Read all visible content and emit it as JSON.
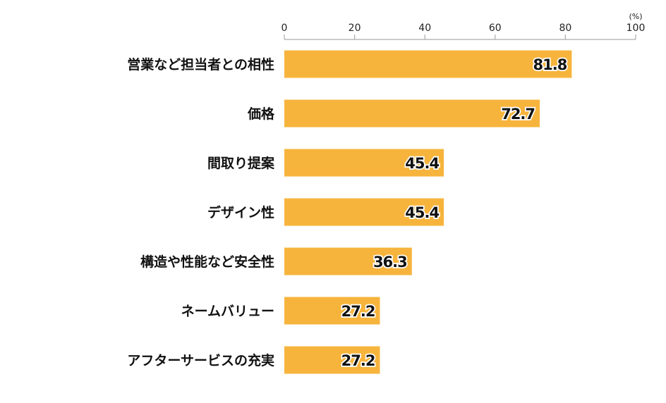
{
  "chart_data": {
    "type": "bar",
    "orientation": "horizontal",
    "categories": [
      "営業など担当者との相性",
      "価格",
      "間取り提案",
      "デザイン性",
      "構造や性能など安全性",
      "ネームバリュー",
      "アフターサービスの充実"
    ],
    "values": [
      81.8,
      72.7,
      45.4,
      45.4,
      36.3,
      27.2,
      27.2
    ],
    "value_labels": [
      "81.8",
      "72.7",
      "45.4",
      "45.4",
      "36.3",
      "27.2",
      "27.2"
    ],
    "xlim": [
      0,
      100
    ],
    "xticks": [
      "0",
      "20",
      "40",
      "60",
      "80",
      "100"
    ],
    "unit_label": "(%)",
    "title": "",
    "grid": false,
    "bar_color": "#F7B43C",
    "axis_color": "#AAAAAA"
  }
}
